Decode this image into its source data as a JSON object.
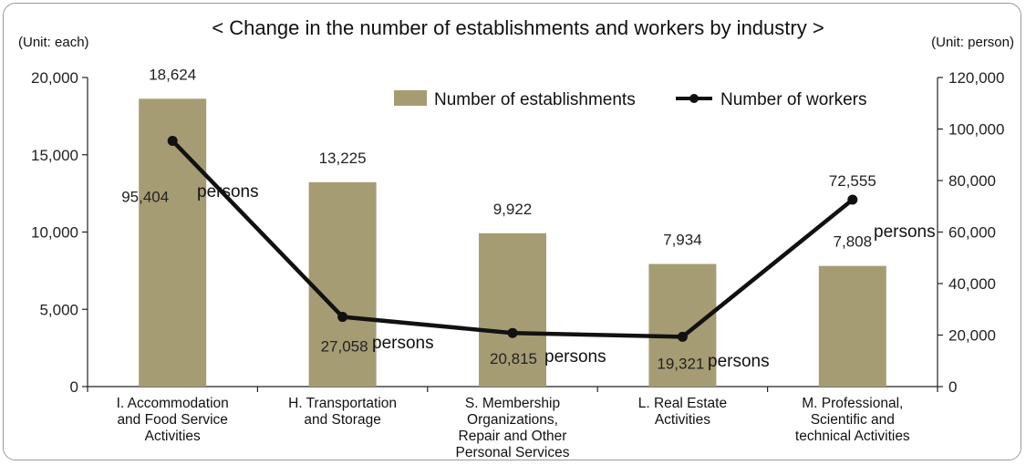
{
  "chart_data": {
    "type": "bar",
    "title": "< Change in the number of establishments and workers by industry >",
    "left_unit": "(Unit: each)",
    "right_unit": "(Unit: person)",
    "categories": [
      "I. Accommodation and Food Service Activities",
      "H. Transportation and Storage",
      "S. Membership Organizations, Repair and Other Personal Services",
      "L. Real Estate Activities",
      "M. Professional, Scientific and technical Activities"
    ],
    "category_lines": [
      [
        "I. Accommodation",
        "and Food Service",
        "Activities"
      ],
      [
        "H. Transportation",
        "and Storage"
      ],
      [
        "S. Membership",
        "Organizations,",
        "Repair and Other",
        "Personal Services"
      ],
      [
        "L. Real Estate",
        "Activities"
      ],
      [
        "M. Professional,",
        "Scientific and",
        "technical Activities"
      ]
    ],
    "series": [
      {
        "name": "Number of establishments",
        "kind": "bar",
        "axis": "left",
        "color": "#a69c74",
        "values": [
          18624,
          13225,
          9922,
          7934,
          7808
        ],
        "labels": [
          "18,624",
          "13,225",
          "9,922",
          "7,934",
          "7,808"
        ]
      },
      {
        "name": "Number of workers",
        "kind": "line",
        "axis": "right",
        "color": "#111111",
        "values": [
          95404,
          27058,
          20815,
          19321,
          72555
        ],
        "labels": [
          "95,404",
          "27,058",
          "20,815",
          "19,321",
          "72,555"
        ],
        "unit_suffix": "persons"
      }
    ],
    "left_axis": {
      "min": 0,
      "max": 20000,
      "ticks": [
        "0",
        "5,000",
        "10,000",
        "15,000",
        "20,000"
      ]
    },
    "right_axis": {
      "min": 0,
      "max": 120000,
      "ticks": [
        "0",
        "20,000",
        "40,000",
        "60,000",
        "80,000",
        "100,000",
        "120,000"
      ]
    },
    "legend_position": "top-right",
    "grid": false
  }
}
